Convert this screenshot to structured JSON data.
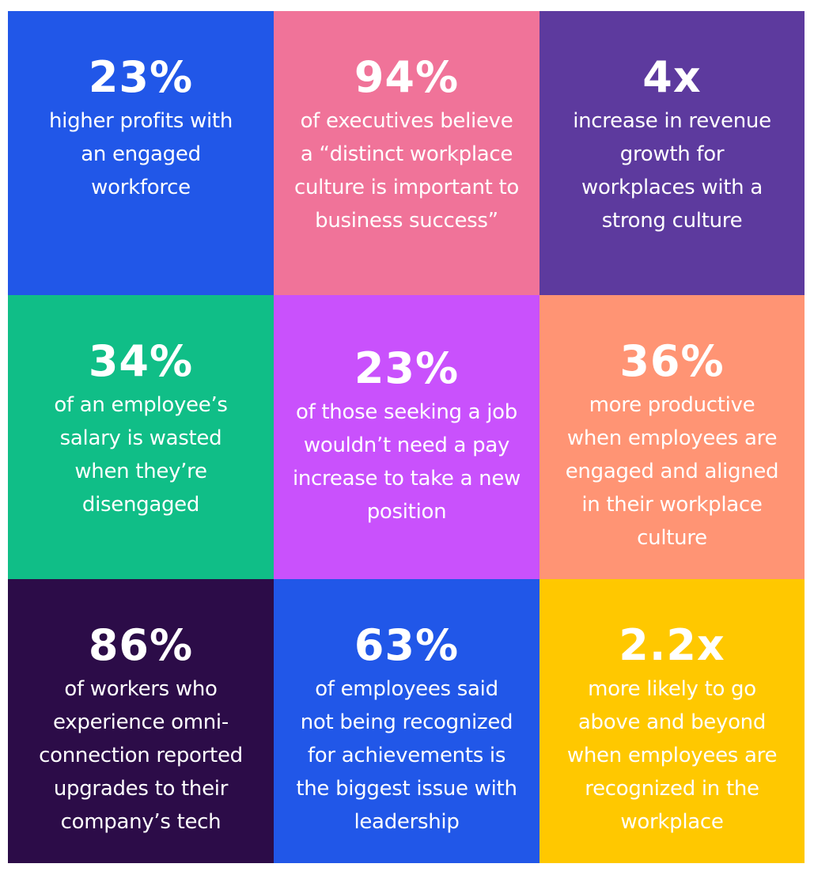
{
  "tiles": [
    {
      "color": "#2157E8",
      "stat": "23%",
      "lines": [
        "higher profits with",
        "an engaged",
        "workforce"
      ]
    },
    {
      "color": "#F07399",
      "stat": "94%",
      "lines": [
        "of executives believe",
        "a “distinct workplace",
        "culture is important to",
        "business success”"
      ]
    },
    {
      "color": "#5D3A9E",
      "stat": "4x",
      "lines": [
        "increase in revenue",
        "growth for",
        "workplaces with a",
        "strong culture"
      ]
    },
    {
      "color": "#10BE87",
      "stat": "34%",
      "lines": [
        "of an employee’s",
        "salary is wasted",
        "when they’re",
        "disengaged"
      ]
    },
    {
      "color": "#C951FC",
      "stat": "23%",
      "lines": [
        "of those seeking a job",
        "wouldn’t need a pay",
        "increase to take a new",
        "position"
      ]
    },
    {
      "color": "#FF9474",
      "stat": "36%",
      "lines": [
        "more productive",
        "when employees are",
        "engaged and aligned",
        "in their workplace",
        "culture"
      ]
    },
    {
      "color": "#2C0C48",
      "stat": "86%",
      "lines": [
        "of workers who",
        "experience omni-",
        "connection reported",
        "upgrades to their",
        "company’s tech"
      ]
    },
    {
      "color": "#2157E8",
      "stat": "63%",
      "lines": [
        "of employees said",
        "not being recognized",
        "for achievements is",
        "the biggest issue with",
        "leadership"
      ]
    },
    {
      "color": "#FFC800",
      "stat": "2.2x",
      "lines": [
        "more likely to go",
        "above and beyond",
        "when employees are",
        "recognized in the",
        "workplace"
      ]
    }
  ]
}
